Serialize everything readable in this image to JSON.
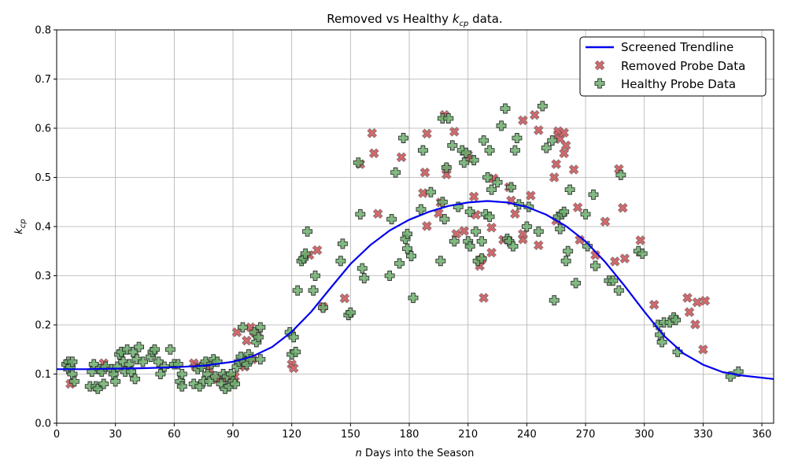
{
  "chart_data": {
    "type": "scatter",
    "title": "Removed vs Healthy k_cp data.",
    "title_prefix": "Removed vs Healthy ",
    "title_symbol": "k",
    "title_symbol_sub": "cp",
    "title_suffix": " data.",
    "xlabel_prefix": "n",
    "xlabel_rest": " Days into the Season",
    "ylabel_symbol": "k",
    "ylabel_symbol_sub": "cp",
    "xlim": [
      0,
      366
    ],
    "ylim": [
      0.0,
      0.8
    ],
    "xticks": [
      0,
      30,
      60,
      90,
      120,
      150,
      180,
      210,
      240,
      270,
      300,
      330,
      360
    ],
    "yticks": [
      "0.0",
      "0.1",
      "0.2",
      "0.3",
      "0.4",
      "0.5",
      "0.6",
      "0.7",
      "0.8"
    ],
    "grid": true,
    "legend_position": "top-right",
    "legend": [
      "Screened Trendline",
      "Removed Probe Data",
      "Healthy Probe Data"
    ],
    "series": [
      {
        "name": "Screened Trendline",
        "kind": "line",
        "color": "#0000ee",
        "points": [
          [
            0,
            0.11
          ],
          [
            15,
            0.11
          ],
          [
            30,
            0.111
          ],
          [
            45,
            0.112
          ],
          [
            60,
            0.114
          ],
          [
            75,
            0.117
          ],
          [
            90,
            0.125
          ],
          [
            100,
            0.136
          ],
          [
            110,
            0.155
          ],
          [
            120,
            0.186
          ],
          [
            130,
            0.227
          ],
          [
            140,
            0.276
          ],
          [
            150,
            0.324
          ],
          [
            160,
            0.362
          ],
          [
            170,
            0.392
          ],
          [
            180,
            0.414
          ],
          [
            190,
            0.43
          ],
          [
            200,
            0.442
          ],
          [
            210,
            0.449
          ],
          [
            220,
            0.452
          ],
          [
            230,
            0.449
          ],
          [
            240,
            0.44
          ],
          [
            250,
            0.424
          ],
          [
            260,
            0.401
          ],
          [
            270,
            0.37
          ],
          [
            280,
            0.328
          ],
          [
            290,
            0.279
          ],
          [
            300,
            0.227
          ],
          [
            310,
            0.178
          ],
          [
            320,
            0.142
          ],
          [
            330,
            0.119
          ],
          [
            340,
            0.104
          ],
          [
            350,
            0.097
          ],
          [
            366,
            0.09
          ]
        ]
      },
      {
        "name": "Removed Probe Data",
        "kind": "scatter",
        "marker": "x",
        "color": "#e8676b",
        "edge": "#555555",
        "points": [
          [
            7,
            0.08
          ],
          [
            24,
            0.122
          ],
          [
            70,
            0.122
          ],
          [
            71,
            0.115
          ],
          [
            77,
            0.12
          ],
          [
            78,
            0.11
          ],
          [
            82,
            0.09
          ],
          [
            85,
            0.092
          ],
          [
            87,
            0.095
          ],
          [
            89,
            0.085
          ],
          [
            91,
            0.095
          ],
          [
            92,
            0.185
          ],
          [
            96,
            0.115
          ],
          [
            97,
            0.168
          ],
          [
            99,
            0.195
          ],
          [
            100,
            0.13
          ],
          [
            101,
            0.185
          ],
          [
            103,
            0.183
          ],
          [
            120,
            0.12
          ],
          [
            121,
            0.112
          ],
          [
            129,
            0.342
          ],
          [
            133,
            0.352
          ],
          [
            136,
            0.237
          ],
          [
            147,
            0.254
          ],
          [
            155,
            0.527
          ],
          [
            161,
            0.59
          ],
          [
            162,
            0.549
          ],
          [
            164,
            0.426
          ],
          [
            176,
            0.541
          ],
          [
            187,
            0.468
          ],
          [
            188,
            0.51
          ],
          [
            189,
            0.401
          ],
          [
            189,
            0.589
          ],
          [
            195,
            0.427
          ],
          [
            196,
            0.449
          ],
          [
            198,
            0.627
          ],
          [
            199,
            0.506
          ],
          [
            199,
            0.517
          ],
          [
            203,
            0.593
          ],
          [
            204,
            0.385
          ],
          [
            208,
            0.391
          ],
          [
            210,
            0.546
          ],
          [
            211,
            0.537
          ],
          [
            213,
            0.461
          ],
          [
            214,
            0.424
          ],
          [
            216,
            0.32
          ],
          [
            217,
            0.333
          ],
          [
            218,
            0.255
          ],
          [
            222,
            0.347
          ],
          [
            222,
            0.398
          ],
          [
            223,
            0.498
          ],
          [
            228,
            0.373
          ],
          [
            231,
            0.48
          ],
          [
            232,
            0.453
          ],
          [
            234,
            0.426
          ],
          [
            238,
            0.374
          ],
          [
            238,
            0.385
          ],
          [
            238,
            0.616
          ],
          [
            242,
            0.463
          ],
          [
            244,
            0.627
          ],
          [
            246,
            0.362
          ],
          [
            246,
            0.596
          ],
          [
            254,
            0.5
          ],
          [
            255,
            0.527
          ],
          [
            255,
            0.412
          ],
          [
            256,
            0.588
          ],
          [
            256,
            0.594
          ],
          [
            257,
            0.578
          ],
          [
            259,
            0.591
          ],
          [
            259,
            0.549
          ],
          [
            260,
            0.565
          ],
          [
            264,
            0.516
          ],
          [
            266,
            0.439
          ],
          [
            267,
            0.373
          ],
          [
            275,
            0.342
          ],
          [
            280,
            0.41
          ],
          [
            285,
            0.329
          ],
          [
            287,
            0.517
          ],
          [
            289,
            0.438
          ],
          [
            290,
            0.335
          ],
          [
            298,
            0.372
          ],
          [
            305,
            0.241
          ],
          [
            322,
            0.255
          ],
          [
            323,
            0.226
          ],
          [
            326,
            0.201
          ],
          [
            327,
            0.246
          ],
          [
            330,
            0.15
          ],
          [
            331,
            0.249
          ]
        ]
      },
      {
        "name": "Healthy Probe Data",
        "kind": "scatter",
        "marker": "P",
        "color": "#6cae6c",
        "edge": "#333333",
        "points": [
          [
            5,
            0.12
          ],
          [
            6,
            0.125
          ],
          [
            6,
            0.11
          ],
          [
            7,
            0.115
          ],
          [
            8,
            0.125
          ],
          [
            8,
            0.1
          ],
          [
            9,
            0.085
          ],
          [
            17,
            0.075
          ],
          [
            18,
            0.105
          ],
          [
            19,
            0.12
          ],
          [
            20,
            0.075
          ],
          [
            21,
            0.07
          ],
          [
            22,
            0.11
          ],
          [
            23,
            0.105
          ],
          [
            24,
            0.08
          ],
          [
            25,
            0.115
          ],
          [
            28,
            0.11
          ],
          [
            29,
            0.1
          ],
          [
            30,
            0.085
          ],
          [
            31,
            0.115
          ],
          [
            32,
            0.14
          ],
          [
            33,
            0.145
          ],
          [
            34,
            0.125
          ],
          [
            35,
            0.105
          ],
          [
            36,
            0.15
          ],
          [
            37,
            0.12
          ],
          [
            38,
            0.105
          ],
          [
            39,
            0.145
          ],
          [
            40,
            0.09
          ],
          [
            41,
            0.13
          ],
          [
            42,
            0.155
          ],
          [
            44,
            0.125
          ],
          [
            48,
            0.135
          ],
          [
            49,
            0.145
          ],
          [
            50,
            0.15
          ],
          [
            52,
            0.125
          ],
          [
            53,
            0.1
          ],
          [
            55,
            0.115
          ],
          [
            58,
            0.15
          ],
          [
            60,
            0.12
          ],
          [
            62,
            0.12
          ],
          [
            63,
            0.085
          ],
          [
            64,
            0.1
          ],
          [
            64,
            0.075
          ],
          [
            70,
            0.08
          ],
          [
            72,
            0.11
          ],
          [
            73,
            0.075
          ],
          [
            74,
            0.115
          ],
          [
            75,
            0.085
          ],
          [
            76,
            0.125
          ],
          [
            77,
            0.1
          ],
          [
            78,
            0.085
          ],
          [
            79,
            0.12
          ],
          [
            80,
            0.13
          ],
          [
            81,
            0.095
          ],
          [
            82,
            0.125
          ],
          [
            84,
            0.08
          ],
          [
            85,
            0.1
          ],
          [
            86,
            0.07
          ],
          [
            87,
            0.095
          ],
          [
            88,
            0.075
          ],
          [
            89,
            0.1
          ],
          [
            90,
            0.085
          ],
          [
            91,
            0.08
          ],
          [
            92,
            0.115
          ],
          [
            93,
            0.125
          ],
          [
            94,
            0.135
          ],
          [
            95,
            0.195
          ],
          [
            96,
            0.125
          ],
          [
            97,
            0.12
          ],
          [
            98,
            0.14
          ],
          [
            99,
            0.13
          ],
          [
            101,
            0.185
          ],
          [
            102,
            0.165
          ],
          [
            103,
            0.175
          ],
          [
            104,
            0.195
          ],
          [
            104,
            0.13
          ],
          [
            119,
            0.185
          ],
          [
            120,
            0.14
          ],
          [
            121,
            0.175
          ],
          [
            122,
            0.145
          ],
          [
            123,
            0.27
          ],
          [
            125,
            0.33
          ],
          [
            126,
            0.335
          ],
          [
            127,
            0.345
          ],
          [
            128,
            0.39
          ],
          [
            131,
            0.27
          ],
          [
            132,
            0.3
          ],
          [
            136,
            0.235
          ],
          [
            145,
            0.33
          ],
          [
            146,
            0.365
          ],
          [
            149,
            0.22
          ],
          [
            150,
            0.225
          ],
          [
            154,
            0.53
          ],
          [
            155,
            0.425
          ],
          [
            156,
            0.315
          ],
          [
            157,
            0.295
          ],
          [
            170,
            0.3
          ],
          [
            171,
            0.415
          ],
          [
            173,
            0.51
          ],
          [
            175,
            0.325
          ],
          [
            177,
            0.58
          ],
          [
            178,
            0.375
          ],
          [
            179,
            0.385
          ],
          [
            179,
            0.355
          ],
          [
            181,
            0.34
          ],
          [
            182,
            0.255
          ],
          [
            186,
            0.435
          ],
          [
            187,
            0.555
          ],
          [
            191,
            0.47
          ],
          [
            196,
            0.33
          ],
          [
            197,
            0.45
          ],
          [
            197,
            0.62
          ],
          [
            198,
            0.415
          ],
          [
            199,
            0.52
          ],
          [
            200,
            0.62
          ],
          [
            202,
            0.565
          ],
          [
            203,
            0.37
          ],
          [
            205,
            0.44
          ],
          [
            207,
            0.555
          ],
          [
            208,
            0.53
          ],
          [
            209,
            0.55
          ],
          [
            210,
            0.37
          ],
          [
            211,
            0.43
          ],
          [
            211,
            0.36
          ],
          [
            213,
            0.535
          ],
          [
            214,
            0.39
          ],
          [
            215,
            0.33
          ],
          [
            217,
            0.335
          ],
          [
            217,
            0.37
          ],
          [
            218,
            0.575
          ],
          [
            219,
            0.425
          ],
          [
            220,
            0.5
          ],
          [
            221,
            0.42
          ],
          [
            221,
            0.555
          ],
          [
            222,
            0.475
          ],
          [
            225,
            0.49
          ],
          [
            227,
            0.605
          ],
          [
            229,
            0.64
          ],
          [
            230,
            0.375
          ],
          [
            231,
            0.37
          ],
          [
            232,
            0.48
          ],
          [
            233,
            0.36
          ],
          [
            234,
            0.555
          ],
          [
            235,
            0.58
          ],
          [
            236,
            0.445
          ],
          [
            240,
            0.4
          ],
          [
            241,
            0.44
          ],
          [
            246,
            0.39
          ],
          [
            248,
            0.645
          ],
          [
            250,
            0.56
          ],
          [
            253,
            0.575
          ],
          [
            254,
            0.25
          ],
          [
            256,
            0.42
          ],
          [
            257,
            0.395
          ],
          [
            258,
            0.425
          ],
          [
            259,
            0.43
          ],
          [
            260,
            0.33
          ],
          [
            261,
            0.35
          ],
          [
            262,
            0.475
          ],
          [
            265,
            0.285
          ],
          [
            270,
            0.425
          ],
          [
            271,
            0.36
          ],
          [
            274,
            0.465
          ],
          [
            275,
            0.32
          ],
          [
            282,
            0.29
          ],
          [
            284,
            0.29
          ],
          [
            287,
            0.27
          ],
          [
            288,
            0.505
          ],
          [
            297,
            0.35
          ],
          [
            299,
            0.345
          ],
          [
            307,
            0.2
          ],
          [
            308,
            0.18
          ],
          [
            309,
            0.165
          ],
          [
            310,
            0.205
          ],
          [
            313,
            0.205
          ],
          [
            315,
            0.215
          ],
          [
            316,
            0.21
          ],
          [
            317,
            0.145
          ],
          [
            344,
            0.095
          ],
          [
            348,
            0.105
          ]
        ]
      }
    ]
  }
}
